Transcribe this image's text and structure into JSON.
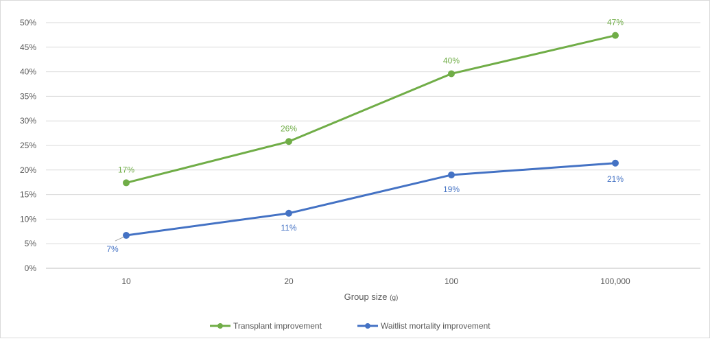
{
  "chart_data": {
    "type": "line",
    "categories": [
      "10",
      "20",
      "100",
      "100,000"
    ],
    "series": [
      {
        "name": "Transplant improvement",
        "values": [
          0.174,
          0.258,
          0.396,
          0.474
        ],
        "labels": [
          "17%",
          "26%",
          "40%",
          "47%"
        ],
        "color": "#70ad47"
      },
      {
        "name": "Waitlist mortality improvement",
        "values": [
          0.067,
          0.112,
          0.19,
          0.214
        ],
        "labels": [
          "7%",
          "11%",
          "19%",
          "21%"
        ],
        "color": "#4472c4"
      }
    ],
    "y_ticks": [
      "0%",
      "5%",
      "10%",
      "15%",
      "20%",
      "25%",
      "30%",
      "35%",
      "40%",
      "45%",
      "50%"
    ],
    "ylim": [
      0,
      0.5
    ],
    "xlabel": "Group size",
    "xlabel_unit": "(g)",
    "ylabel": "",
    "title": "",
    "grid": true,
    "legend_position": "bottom",
    "colors": {
      "grid": "#d9d9d9",
      "axis": "#bfbfbf",
      "tick_text": "#595959"
    }
  }
}
